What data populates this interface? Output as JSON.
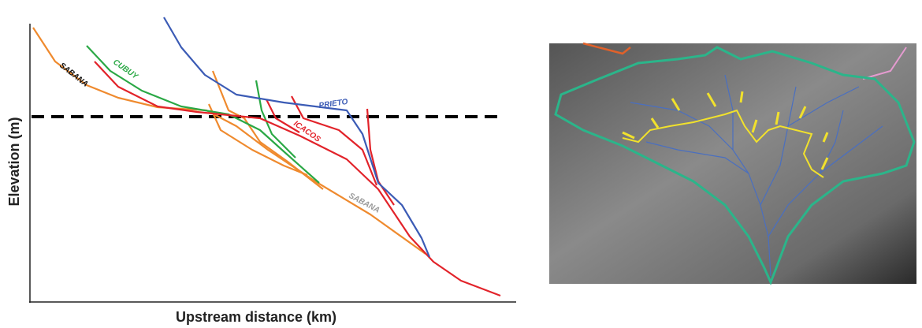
{
  "figure": {
    "profile": {
      "y_axis_label": "Elevation (m)",
      "x_axis_label": "Upstream distance (km)",
      "river_labels": [
        "SABANA",
        "CUBUY",
        "PRIETO",
        "ICACOS",
        "SABANA"
      ]
    }
  }
}
